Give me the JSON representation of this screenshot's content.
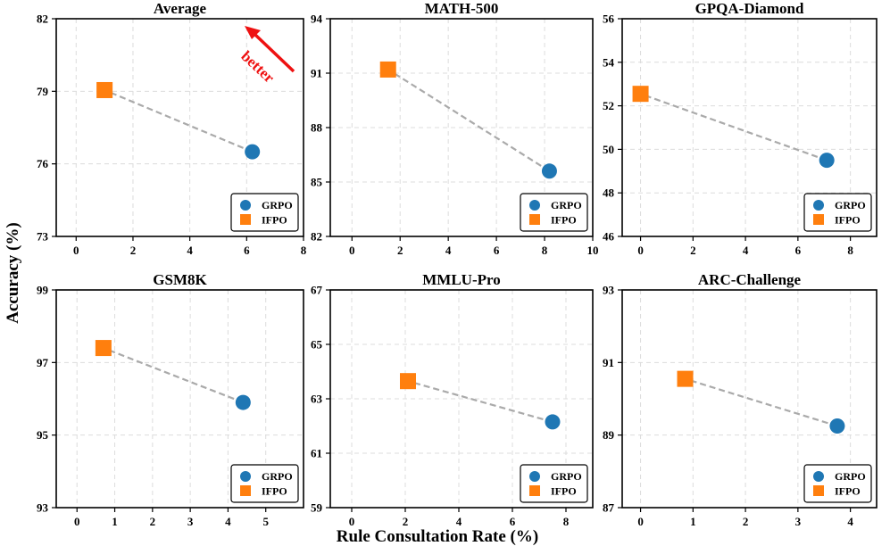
{
  "figure": {
    "ylabel": "Accuracy (%)",
    "xlabel": "Rule Consultation Rate (%)",
    "annotation": "better"
  },
  "legend": {
    "labels": [
      "GRPO",
      "IFPO"
    ]
  },
  "colors": {
    "GRPO": "#1f77b4",
    "IFPO": "#ff7f0e",
    "connector": "#aaaaaa",
    "arrow": "#ee1111"
  },
  "chart_data": [
    {
      "type": "scatter",
      "title": "Average",
      "xlim": [
        -0.7,
        8
      ],
      "xticks": [
        0,
        2,
        4,
        6,
        8
      ],
      "ylim": [
        73,
        82
      ],
      "yticks": [
        73,
        76,
        79,
        82
      ],
      "series": [
        {
          "name": "GRPO",
          "marker": "circle",
          "x": 6.2,
          "y": 76.5
        },
        {
          "name": "IFPO",
          "marker": "square",
          "x": 1.0,
          "y": 79.05
        }
      ]
    },
    {
      "type": "scatter",
      "title": "MATH-500",
      "xlim": [
        -0.9,
        10
      ],
      "xticks": [
        0,
        2,
        4,
        6,
        8,
        10
      ],
      "ylim": [
        82,
        94
      ],
      "yticks": [
        82,
        85,
        88,
        91,
        94
      ],
      "series": [
        {
          "name": "GRPO",
          "marker": "circle",
          "x": 8.2,
          "y": 85.6
        },
        {
          "name": "IFPO",
          "marker": "square",
          "x": 1.5,
          "y": 91.2
        }
      ]
    },
    {
      "type": "scatter",
      "title": "GPQA-Diamond",
      "xlim": [
        -0.7,
        9
      ],
      "xticks": [
        0,
        2,
        4,
        6,
        8
      ],
      "ylim": [
        46,
        56
      ],
      "yticks": [
        46,
        48,
        50,
        52,
        54,
        56
      ],
      "series": [
        {
          "name": "GRPO",
          "marker": "circle",
          "x": 7.1,
          "y": 49.5
        },
        {
          "name": "IFPO",
          "marker": "square",
          "x": 0.0,
          "y": 52.55
        }
      ]
    },
    {
      "type": "scatter",
      "title": "GSM8K",
      "xlim": [
        -0.55,
        6
      ],
      "xticks": [
        0,
        1,
        2,
        3,
        4,
        5
      ],
      "ylim": [
        93,
        99
      ],
      "yticks": [
        93,
        95,
        97,
        99
      ],
      "series": [
        {
          "name": "GRPO",
          "marker": "circle",
          "x": 4.4,
          "y": 95.9
        },
        {
          "name": "IFPO",
          "marker": "square",
          "x": 0.7,
          "y": 97.4
        }
      ]
    },
    {
      "type": "scatter",
      "title": "MMLU-Pro",
      "xlim": [
        -0.8,
        9
      ],
      "xticks": [
        0,
        2,
        4,
        6,
        8
      ],
      "ylim": [
        59,
        67
      ],
      "yticks": [
        59,
        61,
        63,
        65,
        67
      ],
      "series": [
        {
          "name": "GRPO",
          "marker": "circle",
          "x": 7.5,
          "y": 62.15
        },
        {
          "name": "IFPO",
          "marker": "square",
          "x": 2.1,
          "y": 63.65
        }
      ]
    },
    {
      "type": "scatter",
      "title": "ARC-Challenge",
      "xlim": [
        -0.35,
        4.5
      ],
      "xticks": [
        0,
        1,
        2,
        3,
        4
      ],
      "ylim": [
        87,
        93
      ],
      "yticks": [
        87,
        89,
        91,
        93
      ],
      "series": [
        {
          "name": "GRPO",
          "marker": "circle",
          "x": 3.75,
          "y": 89.25
        },
        {
          "name": "IFPO",
          "marker": "square",
          "x": 0.85,
          "y": 90.55
        }
      ]
    }
  ]
}
